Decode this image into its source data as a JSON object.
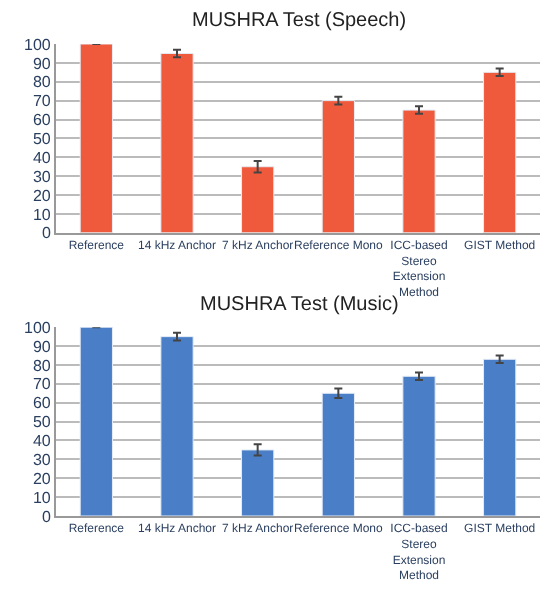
{
  "chart_data": [
    {
      "type": "bar",
      "title": "MUSHRA Test (Speech)",
      "categories": [
        "Reference",
        "14 kHz Anchor",
        "7 kHz Anchor",
        "Reference Mono",
        "ICC-based Stereo Extension Method",
        "GIST Method"
      ],
      "values": [
        100,
        95,
        35,
        70,
        65,
        85
      ],
      "errors": [
        null,
        2,
        3,
        2,
        2,
        2
      ],
      "color": "#f05a3c",
      "ylim": [
        0,
        100
      ],
      "yticks": [
        0,
        10,
        20,
        30,
        40,
        50,
        60,
        70,
        80,
        90,
        100
      ],
      "grid": "y"
    },
    {
      "type": "bar",
      "title": "MUSHRA Test (Music)",
      "categories": [
        "Reference",
        "14 kHz Anchor",
        "7 kHz Anchor",
        "Reference Mono",
        "ICC-based Stereo Extension Method",
        "GIST Method"
      ],
      "values": [
        100,
        95,
        35,
        65,
        74,
        83
      ],
      "errors": [
        null,
        2,
        3,
        2.5,
        2,
        2
      ],
      "color": "#4a7fc8",
      "ylim": [
        0,
        100
      ],
      "yticks": [
        0,
        10,
        20,
        30,
        40,
        50,
        60,
        70,
        80,
        90,
        100
      ],
      "grid": "y"
    }
  ]
}
